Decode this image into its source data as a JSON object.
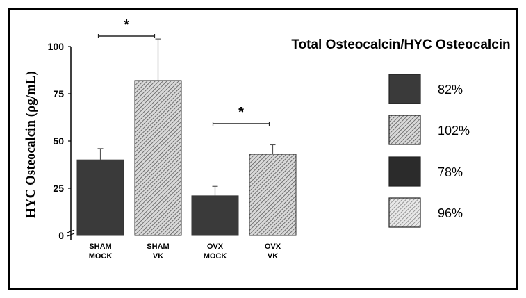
{
  "chart_data": {
    "type": "bar",
    "title": "",
    "ylabel": "HYC Osteocalcin (ρg/mL)",
    "xlabel": "",
    "ylim": [
      0,
      100
    ],
    "yticks": [
      0,
      25,
      50,
      75,
      100
    ],
    "categories": [
      {
        "line1": "SHAM",
        "line2": "MOCK"
      },
      {
        "line1": "SHAM",
        "line2": "VK"
      },
      {
        "line1": "OVX",
        "line2": "MOCK"
      },
      {
        "line1": "OVX",
        "line2": "VK"
      }
    ],
    "values": [
      40,
      82,
      21,
      43
    ],
    "errors": [
      6,
      22,
      5,
      5
    ],
    "bar_fills": [
      "solid-dark",
      "hatched",
      "solid-dark",
      "hatched"
    ],
    "significance": [
      {
        "from": 0,
        "to": 1,
        "label": "*"
      },
      {
        "from": 2,
        "to": 3,
        "label": "*"
      }
    ],
    "grid": false,
    "legend": {
      "placement": "right",
      "title": "Total Osteocalcin/HYC  Osteocalcin",
      "items": [
        {
          "value": "82%",
          "fill": "solid-dark"
        },
        {
          "value": "102%",
          "fill": "hatched"
        },
        {
          "value": "78%",
          "fill": "solid-darker"
        },
        {
          "value": "96%",
          "fill": "hatched-light"
        }
      ]
    }
  },
  "colors": {
    "bar_dark": "#3a3a3a",
    "bar_darker": "#2b2b2b",
    "hatch_bg": "#d9d9d9",
    "hatch_line": "#555555",
    "hatch_light_bg": "#e8e8e8",
    "axis": "#000000"
  }
}
